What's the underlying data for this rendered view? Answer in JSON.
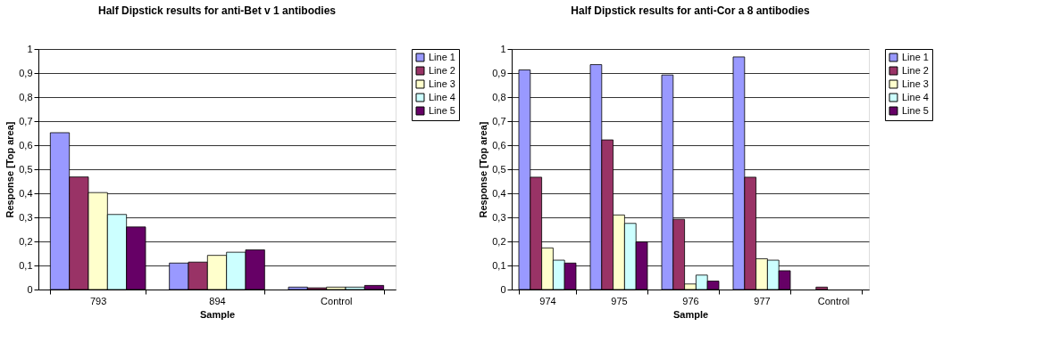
{
  "chart_data": [
    {
      "type": "bar",
      "title": "Half Dipstick results for anti-Bet v 1 antibodies",
      "xlabel": "Sample",
      "ylabel": "Response [Top area]",
      "categories": [
        "793",
        "894",
        "Control"
      ],
      "series": [
        {
          "name": "Line 1",
          "color": "#9999ff",
          "values": [
            0.652,
            0.11,
            0.01
          ]
        },
        {
          "name": "Line 2",
          "color": "#993366",
          "values": [
            0.468,
            0.114,
            0.007
          ]
        },
        {
          "name": "Line 3",
          "color": "#ffffcc",
          "values": [
            0.403,
            0.142,
            0.01
          ]
        },
        {
          "name": "Line 4",
          "color": "#ccffff",
          "values": [
            0.312,
            0.155,
            0.01
          ]
        },
        {
          "name": "Line 5",
          "color": "#660066",
          "values": [
            0.26,
            0.165,
            0.017
          ]
        }
      ],
      "ylim": [
        0,
        1
      ],
      "yticks": [
        0,
        {
          "value": 0.1,
          "label": "0,1"
        },
        {
          "value": 0.2,
          "label": "0,2"
        },
        {
          "value": 0.3,
          "label": "0,3"
        },
        {
          "value": 0.4,
          "label": "0,4"
        },
        {
          "value": 0.5,
          "label": "0,5"
        },
        {
          "value": 0.6,
          "label": "0,6"
        },
        {
          "value": 0.7,
          "label": "0,7"
        },
        {
          "value": 0.8,
          "label": "0,8"
        },
        {
          "value": 0.9,
          "label": "0,9"
        },
        1
      ],
      "grid": "y",
      "legend": "right"
    },
    {
      "type": "bar",
      "title": "Half Dipstick results for anti-Cor a 8 antibodies",
      "xlabel": "Sample",
      "ylabel": "Response [Top area]",
      "categories": [
        "974",
        "975",
        "976",
        "977",
        "Control"
      ],
      "series": [
        {
          "name": "Line 1",
          "color": "#9999ff",
          "values": [
            0.913,
            0.935,
            0.892,
            0.967,
            null
          ]
        },
        {
          "name": "Line 2",
          "color": "#993366",
          "values": [
            0.467,
            0.622,
            0.292,
            0.467,
            0.01
          ]
        },
        {
          "name": "Line 3",
          "color": "#ffffcc",
          "values": [
            0.173,
            0.31,
            0.023,
            0.128,
            null
          ]
        },
        {
          "name": "Line 4",
          "color": "#ccffff",
          "values": [
            0.122,
            0.275,
            0.06,
            0.122,
            null
          ]
        },
        {
          "name": "Line 5",
          "color": "#660066",
          "values": [
            0.11,
            0.198,
            0.035,
            0.078,
            null
          ]
        }
      ],
      "ylim": [
        0,
        1
      ],
      "yticks": [
        0,
        {
          "value": 0.1,
          "label": "0,1"
        },
        {
          "value": 0.2,
          "label": "0,2"
        },
        {
          "value": 0.3,
          "label": "0,3"
        },
        {
          "value": 0.4,
          "label": "0,4"
        },
        {
          "value": 0.5,
          "label": "0,5"
        },
        {
          "value": 0.6,
          "label": "0,6"
        },
        {
          "value": 0.7,
          "label": "0,7"
        },
        {
          "value": 0.8,
          "label": "0,8"
        },
        {
          "value": 0.9,
          "label": "0,9"
        },
        1
      ],
      "grid": "y",
      "legend": "right"
    }
  ]
}
